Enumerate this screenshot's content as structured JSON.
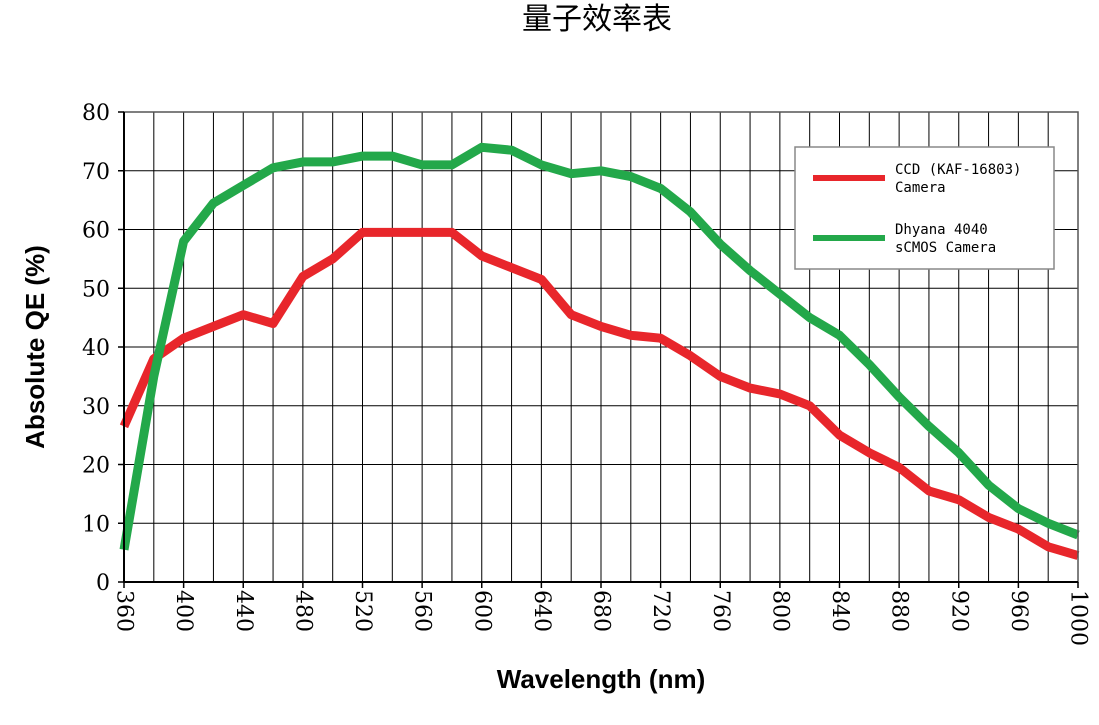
{
  "chart_data": {
    "type": "line",
    "title": "量子效率表",
    "xlabel": "Wavelength (nm)",
    "ylabel": "Absolute QE (%)",
    "xlim": [
      360,
      1000
    ],
    "ylim": [
      0,
      80
    ],
    "x_ticks": [
      "360",
      "400",
      "440",
      "480",
      "520",
      "560",
      "600",
      "640",
      "680",
      "720",
      "760",
      "800",
      "840",
      "880",
      "920",
      "960",
      "1000"
    ],
    "y_ticks": [
      "0",
      "10",
      "20",
      "30",
      "40",
      "50",
      "60",
      "70",
      "80"
    ],
    "grid": true,
    "legend_position": "top-right",
    "series": [
      {
        "name_lines": [
          "CCD (KAF-16803)",
          "Camera"
        ],
        "color": "#e8262b",
        "x": [
          360,
          380,
          400,
          420,
          440,
          460,
          480,
          500,
          520,
          540,
          560,
          580,
          600,
          620,
          640,
          660,
          680,
          700,
          720,
          740,
          760,
          780,
          800,
          820,
          840,
          860,
          880,
          900,
          920,
          940,
          960,
          980,
          1000
        ],
        "y": [
          26.5,
          38,
          41.5,
          43.5,
          45.5,
          44,
          52,
          55,
          59.5,
          59.5,
          59.5,
          59.5,
          55.5,
          53.5,
          51.5,
          45.5,
          43.5,
          42,
          41.5,
          38.5,
          35,
          33,
          32,
          30,
          25,
          22,
          19.5,
          15.5,
          14,
          11,
          9,
          6,
          4.5
        ]
      },
      {
        "name_lines": [
          "Dhyana 4040",
          "sCMOS Camera"
        ],
        "color": "#23a84a",
        "x": [
          360,
          380,
          400,
          420,
          440,
          460,
          480,
          500,
          520,
          540,
          560,
          580,
          600,
          620,
          640,
          660,
          680,
          700,
          720,
          740,
          760,
          780,
          800,
          820,
          840,
          860,
          880,
          900,
          920,
          940,
          960,
          980,
          1000
        ],
        "y": [
          5.5,
          35,
          58,
          64.5,
          67.5,
          70.5,
          71.5,
          71.5,
          72.5,
          72.5,
          71,
          71,
          74,
          73.5,
          71,
          69.5,
          70,
          69,
          67,
          63,
          57.5,
          53,
          49,
          45,
          42,
          37,
          31.5,
          26.5,
          22,
          16.5,
          12.5,
          10,
          8
        ]
      }
    ]
  }
}
